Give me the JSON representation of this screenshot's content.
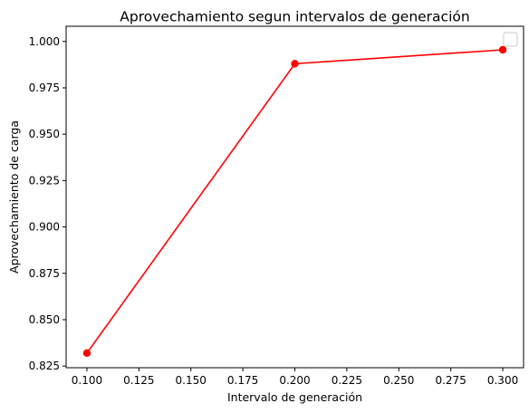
{
  "chart_data": {
    "type": "line",
    "title": "Aprovechamiento segun intervalos de generación",
    "xlabel": "Intervalo de generación",
    "ylabel": "Aprovechamiento de carga",
    "x": [
      0.1,
      0.2,
      0.3
    ],
    "series": [
      {
        "values": [
          0.832,
          0.988,
          0.9955
        ],
        "color": "#ff0000",
        "marker": "circle"
      }
    ],
    "xlim": [
      0.09,
      0.31
    ],
    "ylim": [
      0.8241,
      1.0082
    ],
    "xticks": [
      0.1,
      0.125,
      0.15,
      0.175,
      0.2,
      0.225,
      0.25,
      0.275,
      0.3
    ],
    "xtick_labels": [
      "0.100",
      "0.125",
      "0.150",
      "0.175",
      "0.200",
      "0.225",
      "0.250",
      "0.275",
      "0.300"
    ],
    "yticks": [
      0.825,
      0.85,
      0.875,
      0.9,
      0.925,
      0.95,
      0.975,
      1.0
    ],
    "ytick_labels": [
      "0.825",
      "0.850",
      "0.875",
      "0.900",
      "0.925",
      "0.950",
      "0.975",
      "1.000"
    ],
    "grid": false,
    "legend": {
      "position": "top-right",
      "entries": []
    }
  }
}
